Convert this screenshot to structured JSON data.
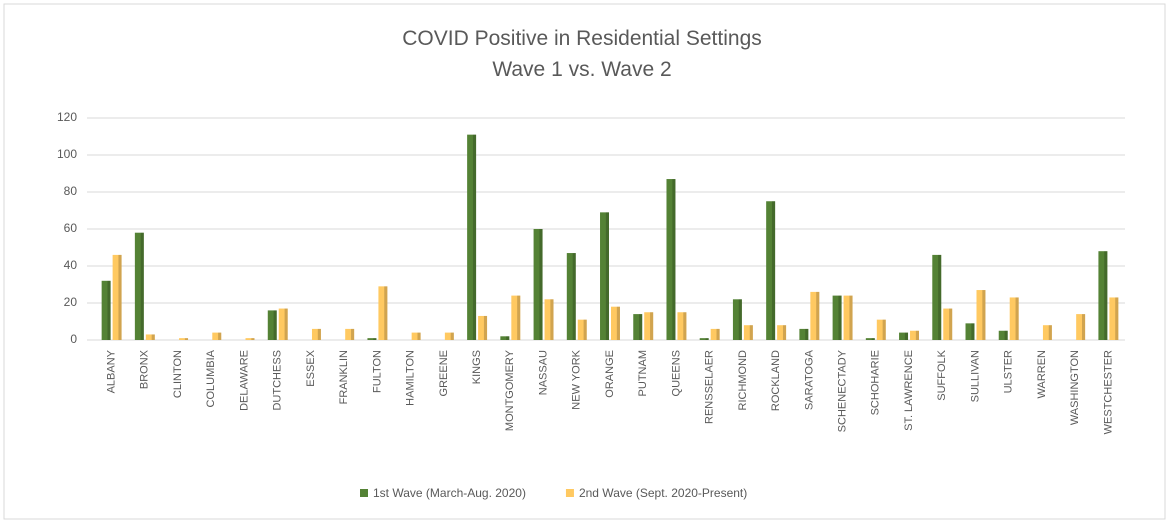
{
  "chart_data": {
    "type": "bar",
    "title": "COVID Positive in Residential Settings",
    "subtitle": "Wave 1 vs. Wave 2",
    "categories": [
      "ALBANY",
      "BRONX",
      "CLINTON",
      "COLUMBIA",
      "DELAWARE",
      "DUTCHESS",
      "ESSEX",
      "FRANKLIN",
      "FULTON",
      "HAMILTON",
      "GREENE",
      "KINGS",
      "MONTGOMERY",
      "NASSAU",
      "NEW YORK",
      "ORANGE",
      "PUTNAM",
      "QUEENS",
      "RENSSELAER",
      "RICHMOND",
      "ROCKLAND",
      "SARATOGA",
      "SCHENECTADY",
      "SCHOHARIE",
      "ST. LAWRENCE",
      "SUFFOLK",
      "SULLIVAN",
      "ULSTER",
      "WARREN",
      "WASHINGTON",
      "WESTCHESTER"
    ],
    "series": [
      {
        "name": "1st Wave (March-Aug. 2020)",
        "color": "#548235",
        "values": [
          32,
          58,
          0,
          0,
          0,
          16,
          0,
          0,
          1,
          0,
          0,
          111,
          2,
          60,
          47,
          69,
          14,
          87,
          1,
          22,
          75,
          6,
          24,
          1,
          4,
          46,
          9,
          5,
          0,
          0,
          48
        ]
      },
      {
        "name": "2nd Wave (Sept. 2020-Present)",
        "color": "#ffc961",
        "values": [
          46,
          3,
          1,
          4,
          1,
          17,
          6,
          6,
          29,
          4,
          4,
          13,
          24,
          22,
          11,
          18,
          15,
          15,
          6,
          8,
          8,
          26,
          24,
          11,
          5,
          17,
          27,
          23,
          8,
          14,
          23
        ]
      }
    ],
    "ylim": [
      0,
      120
    ],
    "yticks": [
      0,
      20,
      40,
      60,
      80,
      100,
      120
    ],
    "grid": true,
    "legend": "bottom"
  }
}
